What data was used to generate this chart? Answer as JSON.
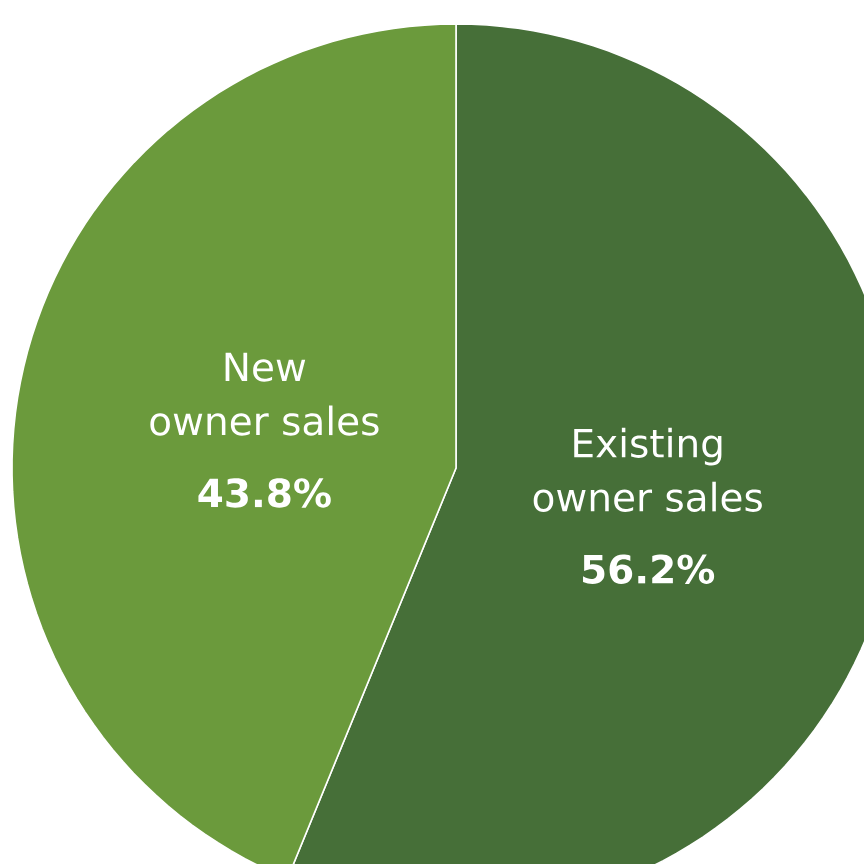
{
  "chart_data": {
    "type": "pie",
    "categories": [
      "Existing owner sales",
      "New owner sales"
    ],
    "values": [
      56.2,
      43.8
    ],
    "colors": [
      "#466f38",
      "#6b9a3c"
    ],
    "value_labels": [
      "56.2%",
      "43.8%"
    ],
    "legend": false
  }
}
